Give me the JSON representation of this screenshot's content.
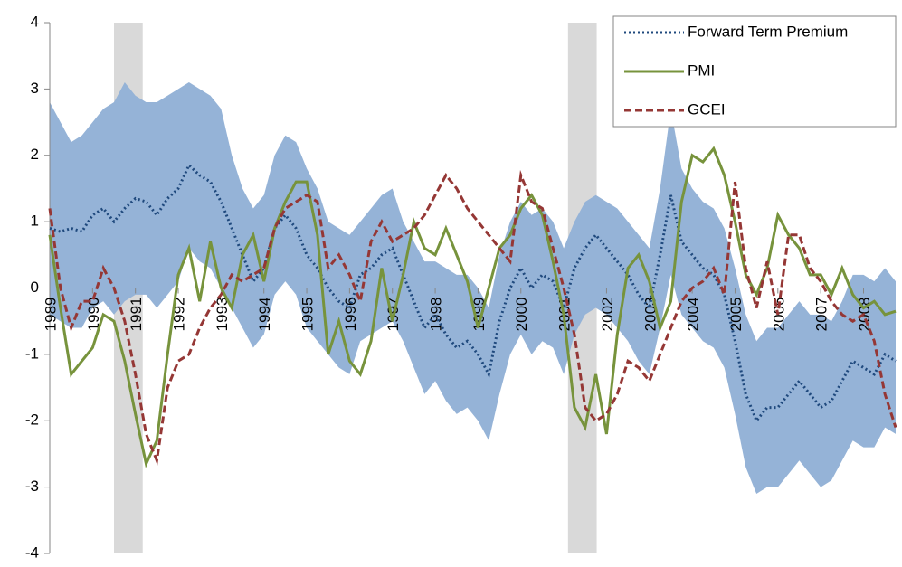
{
  "chart_data": {
    "type": "line",
    "x": [
      1989,
      1989.25,
      1989.5,
      1989.75,
      1990,
      1990.25,
      1990.5,
      1990.75,
      1991,
      1991.25,
      1991.5,
      1991.75,
      1992,
      1992.25,
      1992.5,
      1992.75,
      1993,
      1993.25,
      1993.5,
      1993.75,
      1994,
      1994.25,
      1994.5,
      1994.75,
      1995,
      1995.25,
      1995.5,
      1995.75,
      1996,
      1996.25,
      1996.5,
      1996.75,
      1997,
      1997.25,
      1997.5,
      1997.75,
      1998,
      1998.25,
      1998.5,
      1998.75,
      1999,
      1999.25,
      1999.5,
      1999.75,
      2000,
      2000.25,
      2000.5,
      2000.75,
      2001,
      2001.25,
      2001.5,
      2001.75,
      2002,
      2002.25,
      2002.5,
      2002.75,
      2003,
      2003.25,
      2003.5,
      2003.75,
      2004,
      2004.25,
      2004.5,
      2004.75,
      2005,
      2005.25,
      2005.5,
      2005.75,
      2006,
      2006.25,
      2006.5,
      2006.75,
      2007,
      2007.25,
      2007.5,
      2007.75,
      2008,
      2008.25,
      2008.5,
      2008.75
    ],
    "xlim": [
      1989,
      2008.75
    ],
    "xticks": [
      1989,
      1990,
      1991,
      1992,
      1993,
      1994,
      1995,
      1996,
      1997,
      1998,
      1999,
      2000,
      2001,
      2002,
      2003,
      2004,
      2005,
      2006,
      2007,
      2008
    ],
    "ylim": [
      -4,
      4
    ],
    "yticks": [
      -4,
      -3,
      -2,
      -1,
      0,
      1,
      2,
      3,
      4
    ],
    "recessions": [
      {
        "start": 1990.5,
        "end": 1991.17
      },
      {
        "start": 2001.1,
        "end": 2001.77
      }
    ],
    "recession_color": "#d9d9d9",
    "band_color": "#95b3d7",
    "band_upper": [
      2.8,
      2.5,
      2.2,
      2.3,
      2.5,
      2.7,
      2.8,
      3.1,
      2.9,
      2.8,
      2.8,
      2.9,
      3.0,
      3.1,
      3.0,
      2.9,
      2.7,
      2.0,
      1.5,
      1.2,
      1.4,
      2.0,
      2.3,
      2.2,
      1.8,
      1.5,
      1.0,
      0.9,
      0.8,
      1.0,
      1.2,
      1.4,
      1.5,
      1.0,
      0.7,
      0.4,
      0.4,
      0.3,
      0.2,
      0.2,
      0.0,
      -0.3,
      0.5,
      1.0,
      1.3,
      1.1,
      1.2,
      1.0,
      0.6,
      1.0,
      1.3,
      1.4,
      1.3,
      1.2,
      1.0,
      0.8,
      0.6,
      1.5,
      2.7,
      1.8,
      1.5,
      1.3,
      1.2,
      0.9,
      0.3,
      -0.4,
      -0.8,
      -0.6,
      -0.6,
      -0.4,
      -0.2,
      -0.4,
      -0.4,
      -0.5,
      -0.2,
      0.2,
      0.2,
      0.1,
      0.3,
      0.1
    ],
    "band_lower": [
      -0.4,
      -0.5,
      -0.6,
      -0.6,
      -0.3,
      -0.2,
      -0.4,
      -0.2,
      -0.1,
      -0.1,
      -0.3,
      -0.1,
      0.1,
      0.6,
      0.4,
      0.3,
      0.0,
      -0.3,
      -0.6,
      -0.9,
      -0.7,
      -0.1,
      0.1,
      -0.1,
      -0.6,
      -0.8,
      -1.0,
      -1.2,
      -1.3,
      -0.8,
      -0.7,
      -0.6,
      -0.5,
      -0.8,
      -1.2,
      -1.6,
      -1.4,
      -1.7,
      -1.9,
      -1.8,
      -2.0,
      -2.3,
      -1.6,
      -1.0,
      -0.7,
      -1.0,
      -0.8,
      -0.9,
      -1.3,
      -0.7,
      -0.4,
      -0.3,
      -0.4,
      -0.6,
      -0.8,
      -1.1,
      -1.3,
      -0.6,
      0.2,
      -0.4,
      -0.6,
      -0.8,
      -0.9,
      -1.2,
      -1.9,
      -2.7,
      -3.1,
      -3.0,
      -3.0,
      -2.8,
      -2.6,
      -2.8,
      -3.0,
      -2.9,
      -2.6,
      -2.3,
      -2.4,
      -2.4,
      -2.1,
      -2.2
    ],
    "series": [
      {
        "name": "Forward Term Premium",
        "color": "#1f497d",
        "style": "dotted",
        "values": [
          0.9,
          0.85,
          0.9,
          0.85,
          1.1,
          1.2,
          1.0,
          1.2,
          1.35,
          1.3,
          1.1,
          1.35,
          1.5,
          1.85,
          1.7,
          1.6,
          1.3,
          0.9,
          0.5,
          0.1,
          0.3,
          0.9,
          1.1,
          0.9,
          0.5,
          0.3,
          0.0,
          -0.2,
          -0.3,
          0.2,
          0.3,
          0.5,
          0.6,
          0.2,
          -0.2,
          -0.6,
          -0.4,
          -0.7,
          -0.9,
          -0.8,
          -1.0,
          -1.3,
          -0.5,
          0.0,
          0.3,
          0.0,
          0.2,
          0.1,
          -0.3,
          0.3,
          0.6,
          0.8,
          0.6,
          0.4,
          0.2,
          -0.1,
          -0.3,
          0.5,
          1.4,
          0.7,
          0.5,
          0.3,
          0.2,
          -0.1,
          -0.8,
          -1.6,
          -2.0,
          -1.8,
          -1.8,
          -1.6,
          -1.4,
          -1.6,
          -1.8,
          -1.7,
          -1.4,
          -1.1,
          -1.2,
          -1.3,
          -1.0,
          -1.1
        ]
      },
      {
        "name": "PMI",
        "color": "#77933c",
        "style": "solid",
        "values": [
          0.8,
          -0.3,
          -1.3,
          -1.1,
          -0.9,
          -0.4,
          -0.5,
          -1.1,
          -1.9,
          -2.65,
          -2.3,
          -1.0,
          0.2,
          0.6,
          -0.2,
          0.7,
          0.0,
          -0.3,
          0.5,
          0.8,
          0.1,
          0.9,
          1.3,
          1.6,
          1.6,
          0.8,
          -1.0,
          -0.5,
          -1.1,
          -1.3,
          -0.8,
          0.3,
          -0.5,
          0.2,
          1.0,
          0.6,
          0.5,
          0.9,
          0.5,
          0.1,
          -0.6,
          0.0,
          0.6,
          0.8,
          1.2,
          1.4,
          1.1,
          0.4,
          -0.4,
          -1.8,
          -2.1,
          -1.3,
          -2.2,
          -0.7,
          0.3,
          0.5,
          0.1,
          -0.6,
          -0.2,
          1.3,
          2.0,
          1.9,
          2.1,
          1.7,
          1.0,
          0.2,
          -0.1,
          0.3,
          1.1,
          0.8,
          0.6,
          0.2,
          0.2,
          -0.1,
          0.3,
          -0.1,
          -0.3,
          -0.2,
          -0.4,
          -0.35
        ]
      },
      {
        "name": "GCEI",
        "color": "#953735",
        "style": "dashed",
        "values": [
          1.2,
          0.0,
          -0.6,
          -0.2,
          -0.2,
          0.3,
          0.0,
          -0.5,
          -1.3,
          -2.2,
          -2.6,
          -1.5,
          -1.1,
          -1.0,
          -0.6,
          -0.3,
          -0.1,
          0.2,
          0.1,
          0.2,
          0.3,
          0.9,
          1.2,
          1.3,
          1.4,
          1.3,
          0.3,
          0.5,
          0.2,
          -0.2,
          0.7,
          1.0,
          0.7,
          0.8,
          0.9,
          1.1,
          1.4,
          1.7,
          1.5,
          1.2,
          1.0,
          0.8,
          0.6,
          0.4,
          1.7,
          1.3,
          1.2,
          0.6,
          0.0,
          -0.7,
          -1.8,
          -2.0,
          -1.9,
          -1.6,
          -1.1,
          -1.2,
          -1.4,
          -1.0,
          -0.6,
          -0.2,
          0.0,
          0.1,
          0.3,
          -0.1,
          1.6,
          0.3,
          -0.3,
          0.4,
          -0.4,
          0.8,
          0.8,
          0.3,
          0.1,
          -0.2,
          -0.4,
          -0.5,
          -0.4,
          -0.8,
          -1.6,
          -2.1
        ]
      }
    ],
    "legend": "top-right"
  }
}
